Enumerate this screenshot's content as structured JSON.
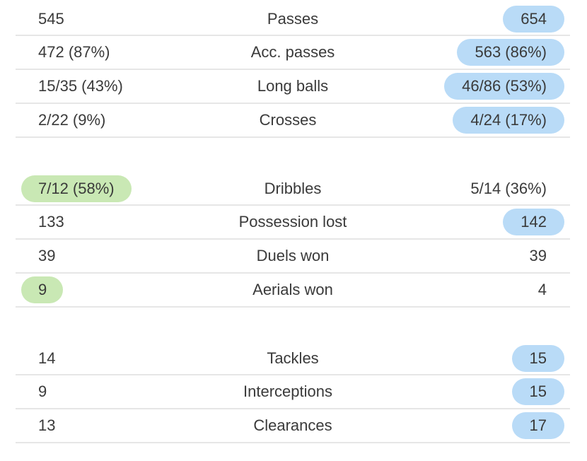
{
  "groups": [
    {
      "rows": [
        {
          "home": "545",
          "label": "Passes",
          "away": "654",
          "highlight": "away"
        },
        {
          "home": "472 (87%)",
          "label": "Acc. passes",
          "away": "563 (86%)",
          "highlight": "away"
        },
        {
          "home": "15/35 (43%)",
          "label": "Long balls",
          "away": "46/86 (53%)",
          "highlight": "away"
        },
        {
          "home": "2/22 (9%)",
          "label": "Crosses",
          "away": "4/24 (17%)",
          "highlight": "away"
        }
      ]
    },
    {
      "rows": [
        {
          "home": "7/12 (58%)",
          "label": "Dribbles",
          "away": "5/14 (36%)",
          "highlight": "home"
        },
        {
          "home": "133",
          "label": "Possession lost",
          "away": "142",
          "highlight": "away"
        },
        {
          "home": "39",
          "label": "Duels won",
          "away": "39",
          "highlight": "none"
        },
        {
          "home": "9",
          "label": "Aerials won",
          "away": "4",
          "highlight": "home"
        }
      ]
    },
    {
      "rows": [
        {
          "home": "14",
          "label": "Tackles",
          "away": "15",
          "highlight": "away"
        },
        {
          "home": "9",
          "label": "Interceptions",
          "away": "15",
          "highlight": "away"
        },
        {
          "home": "13",
          "label": "Clearances",
          "away": "17",
          "highlight": "away"
        }
      ]
    }
  ],
  "colors": {
    "home_highlight": "#c9e8b4",
    "away_highlight": "#b9dbf7",
    "divider": "#e6e6e6",
    "text": "#3a3a3a"
  }
}
